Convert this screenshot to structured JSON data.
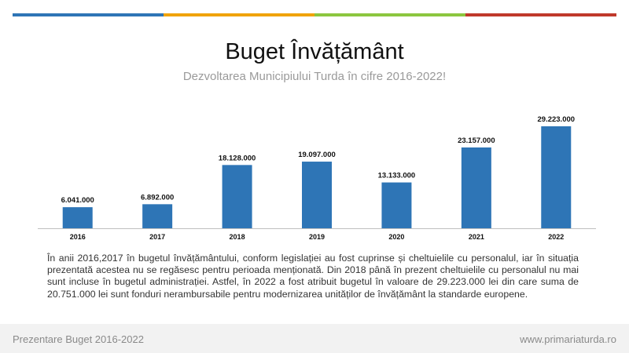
{
  "slide": {
    "title": "Buget Învățământ",
    "subtitle": "Dezvoltarea Municipiului Turda în cifre 2016-2022!",
    "description": "În anii 2016,2017 în bugetul învățământului, conform legislației au fost cuprinse și cheltuielile cu personalul, iar în situația prezentată acestea nu se regăsesc pentru perioada menționată. Din 2018 până în prezent cheltuielile cu personalul nu mai sunt incluse în bugetul administrației. Astfel, în 2022 a fost atribuit bugetul în valoare de 29.223.000 lei din care suma de 20.751.000 lei sunt fonduri nerambursabile pentru modernizarea unităților de învățământ la standarde europene.",
    "topbar_colors": [
      "#2e75b6",
      "#f0a30a",
      "#8cc63f",
      "#c0392b"
    ]
  },
  "footer": {
    "left": "Prezentare Buget 2016-2022",
    "right": "www.primariaturda.ro"
  },
  "chart_data": {
    "type": "bar",
    "categories": [
      "2016",
      "2017",
      "2018",
      "2019",
      "2020",
      "2021",
      "2022"
    ],
    "values": [
      6041000,
      6892000,
      18128000,
      19097000,
      13133000,
      23157000,
      29223000
    ],
    "value_labels": [
      "6.041.000",
      "6.892.000",
      "18.128.000",
      "19.097.000",
      "13.133.000",
      "23.157.000",
      "29.223.000"
    ],
    "ylim": [
      0,
      29223000
    ],
    "grid": false,
    "bar_color": "#2e75b6"
  }
}
